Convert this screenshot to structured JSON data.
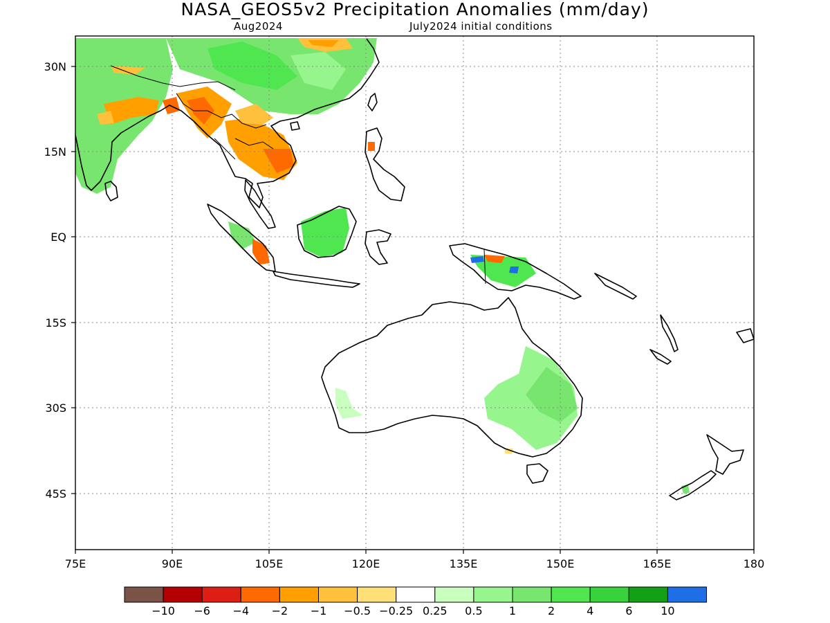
{
  "title": "NASA_GEOS5v2 Precipitation Anomalies (mm/day)",
  "subtitle_left": "Aug2024",
  "subtitle_right": "July2024 initial conditions",
  "map": {
    "lon_range": [
      75,
      180
    ],
    "lat_range": [
      -49,
      35
    ],
    "lon_ticks": [
      "75E",
      "90E",
      "105E",
      "120E",
      "135E",
      "150E",
      "165E",
      "180"
    ],
    "lat_ticks": [
      "30N",
      "15N",
      "EQ",
      "15S",
      "30S",
      "45S"
    ],
    "gridlines": "dotted"
  },
  "colorbar": {
    "colors": [
      "#7a5246",
      "#b40000",
      "#dc1e14",
      "#ff6a00",
      "#ffa000",
      "#ffc03c",
      "#ffe078",
      "#ffffff",
      "#c8ffbe",
      "#96f58c",
      "#78e66e",
      "#50e650",
      "#37d23c",
      "#14a014",
      "#1e6ee6"
    ],
    "labels": [
      "-10",
      "-6",
      "-4",
      "-2",
      "-1",
      "-0.5",
      "-0.25",
      "0.25",
      "0.5",
      "1",
      "2",
      "4",
      "6",
      "10"
    ]
  }
}
